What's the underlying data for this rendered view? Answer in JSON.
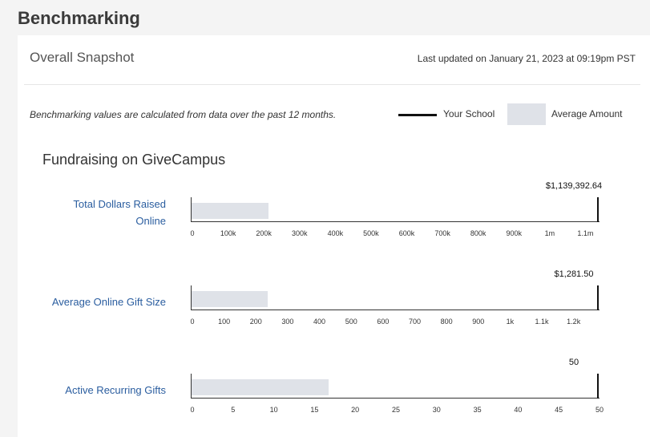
{
  "page": {
    "title": "Benchmarking"
  },
  "snapshot": {
    "title": "Overall Snapshot",
    "last_updated": "Last updated on January 21, 2023 at 09:19pm PST",
    "note": "Benchmarking values are calculated from data over the past 12 months.",
    "legend": {
      "your_school": "Your School",
      "average": "Average Amount"
    }
  },
  "section": {
    "title": "Fundraising on GiveCampus"
  },
  "colors": {
    "link": "#2a5d9f",
    "average_bar": "#dfe2e8",
    "school_marker": "#111111"
  },
  "metrics": [
    {
      "label_line1": "Total Dollars Raised",
      "label_line2": "Online",
      "school_value_label": "$1,139,392.64",
      "school_value": 1139392.64,
      "average_value": 215000,
      "axis_max": 1139392.64,
      "ticks": [
        {
          "value": 0,
          "label": "0"
        },
        {
          "value": 100000,
          "label": "100k"
        },
        {
          "value": 200000,
          "label": "200k"
        },
        {
          "value": 300000,
          "label": "300k"
        },
        {
          "value": 400000,
          "label": "400k"
        },
        {
          "value": 500000,
          "label": "500k"
        },
        {
          "value": 600000,
          "label": "600k"
        },
        {
          "value": 700000,
          "label": "700k"
        },
        {
          "value": 800000,
          "label": "800k"
        },
        {
          "value": 900000,
          "label": "900k"
        },
        {
          "value": 1000000,
          "label": "1m"
        },
        {
          "value": 1100000,
          "label": "1.1m"
        }
      ]
    },
    {
      "label_line1": "Average Online Gift Size",
      "label_line2": "",
      "school_value_label": "$1,281.50",
      "school_value": 1281.5,
      "average_value": 240,
      "axis_max": 1281.5,
      "ticks": [
        {
          "value": 0,
          "label": "0"
        },
        {
          "value": 100,
          "label": "100"
        },
        {
          "value": 200,
          "label": "200"
        },
        {
          "value": 300,
          "label": "300"
        },
        {
          "value": 400,
          "label": "400"
        },
        {
          "value": 500,
          "label": "500"
        },
        {
          "value": 600,
          "label": "600"
        },
        {
          "value": 700,
          "label": "700"
        },
        {
          "value": 800,
          "label": "800"
        },
        {
          "value": 900,
          "label": "900"
        },
        {
          "value": 1000,
          "label": "1k"
        },
        {
          "value": 1100,
          "label": "1.1k"
        },
        {
          "value": 1200,
          "label": "1.2k"
        }
      ]
    },
    {
      "label_line1": "Active Recurring Gifts",
      "label_line2": "",
      "school_value_label": "50",
      "school_value": 50,
      "average_value": 16.8,
      "axis_max": 50,
      "ticks": [
        {
          "value": 0,
          "label": "0"
        },
        {
          "value": 5,
          "label": "5"
        },
        {
          "value": 10,
          "label": "10"
        },
        {
          "value": 15,
          "label": "15"
        },
        {
          "value": 20,
          "label": "20"
        },
        {
          "value": 25,
          "label": "25"
        },
        {
          "value": 30,
          "label": "30"
        },
        {
          "value": 35,
          "label": "35"
        },
        {
          "value": 40,
          "label": "40"
        },
        {
          "value": 45,
          "label": "45"
        },
        {
          "value": 50,
          "label": "50"
        }
      ]
    }
  ]
}
